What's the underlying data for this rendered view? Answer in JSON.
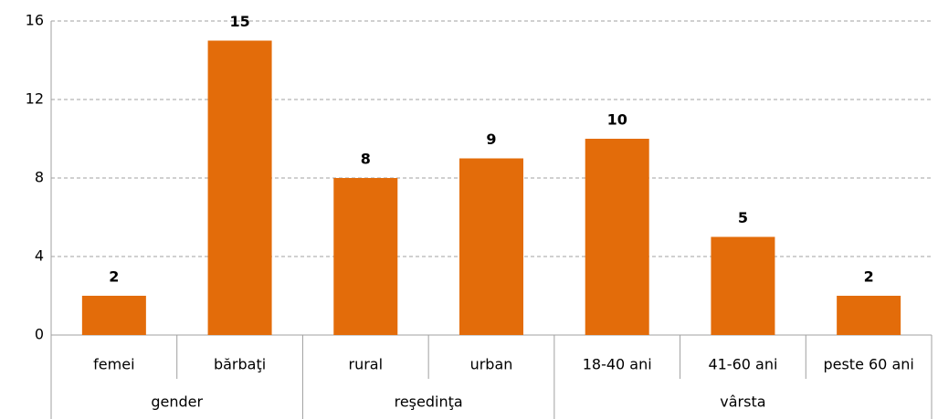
{
  "chart_data": {
    "type": "bar",
    "groups": [
      {
        "name": "gender",
        "categories": [
          "femei",
          "bărbaţi"
        ]
      },
      {
        "name": "reşedinţa",
        "categories": [
          "rural",
          "urban"
        ]
      },
      {
        "name": "vârsta",
        "categories": [
          "18-40 ani",
          "41-60 ani",
          "peste 60 ani"
        ]
      }
    ],
    "values": [
      2,
      15,
      8,
      9,
      10,
      5,
      2
    ],
    "color": "#e36c0a",
    "ylim": [
      0,
      16
    ],
    "yticks": [
      0,
      4,
      8,
      12,
      16
    ],
    "grid": true
  }
}
